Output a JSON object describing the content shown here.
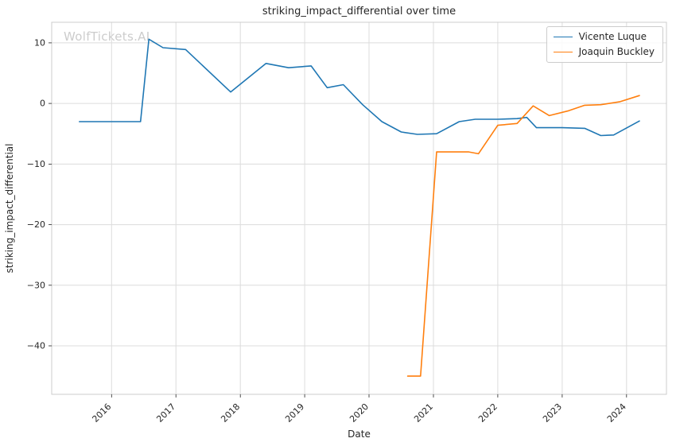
{
  "watermark": {
    "text": "WolfTickets.AI",
    "color": "#cccccc"
  },
  "chart_data": {
    "type": "line",
    "title": "striking_impact_differential over time",
    "xlabel": "Date",
    "ylabel": "striking_impact_differential",
    "grid": true,
    "legend_position": "upper right",
    "xlim": [
      2015.07,
      2024.62
    ],
    "ylim": [
      -48,
      13.4
    ],
    "x_ticks": [
      2016,
      2017,
      2018,
      2019,
      2020,
      2021,
      2022,
      2023,
      2024
    ],
    "y_ticks": [
      10,
      0,
      -10,
      -20,
      -30,
      -40
    ],
    "series": [
      {
        "name": "Vicente Luque",
        "color": "#1f77b4",
        "points": [
          [
            2015.5,
            -3.0
          ],
          [
            2015.95,
            -3.0
          ],
          [
            2016.45,
            -3.0
          ],
          [
            2016.58,
            10.6
          ],
          [
            2016.8,
            9.2
          ],
          [
            2017.15,
            8.9
          ],
          [
            2017.85,
            1.9
          ],
          [
            2018.4,
            6.6
          ],
          [
            2018.75,
            5.9
          ],
          [
            2019.1,
            6.2
          ],
          [
            2019.35,
            2.6
          ],
          [
            2019.6,
            3.1
          ],
          [
            2019.9,
            -0.2
          ],
          [
            2020.2,
            -3.0
          ],
          [
            2020.5,
            -4.7
          ],
          [
            2020.75,
            -5.1
          ],
          [
            2021.05,
            -5.0
          ],
          [
            2021.4,
            -3.0
          ],
          [
            2021.65,
            -2.6
          ],
          [
            2022.0,
            -2.6
          ],
          [
            2022.3,
            -2.5
          ],
          [
            2022.45,
            -2.3
          ],
          [
            2022.6,
            -4.0
          ],
          [
            2023.0,
            -4.0
          ],
          [
            2023.35,
            -4.1
          ],
          [
            2023.6,
            -5.3
          ],
          [
            2023.8,
            -5.2
          ],
          [
            2024.2,
            -2.9
          ]
        ]
      },
      {
        "name": "Joaquin Buckley",
        "color": "#ff7f0e",
        "points": [
          [
            2020.6,
            -45.0
          ],
          [
            2020.8,
            -45.0
          ],
          [
            2021.05,
            -8.0
          ],
          [
            2021.3,
            -8.0
          ],
          [
            2021.55,
            -8.0
          ],
          [
            2021.7,
            -8.3
          ],
          [
            2022.0,
            -3.6
          ],
          [
            2022.3,
            -3.3
          ],
          [
            2022.55,
            -0.4
          ],
          [
            2022.8,
            -2.0
          ],
          [
            2023.1,
            -1.2
          ],
          [
            2023.35,
            -0.3
          ],
          [
            2023.6,
            -0.2
          ],
          [
            2023.9,
            0.3
          ],
          [
            2024.2,
            1.3
          ]
        ]
      }
    ]
  }
}
